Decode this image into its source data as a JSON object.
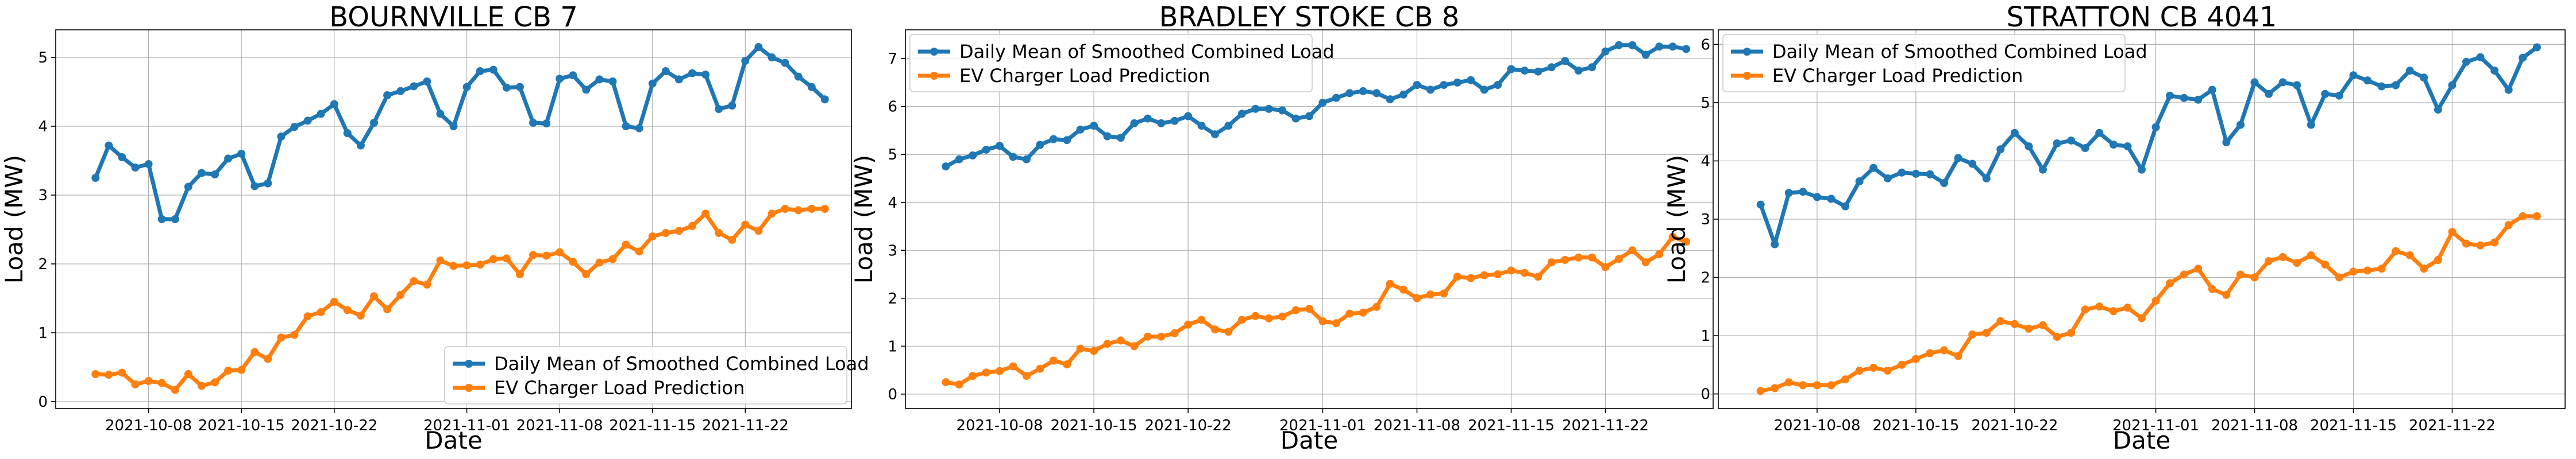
{
  "chart_data": [
    {
      "type": "line",
      "title": "BOURNVILLE CB 7",
      "xlabel": "Date",
      "ylabel": "Load (MW)",
      "x_start": "2021-10-04",
      "xlim": [
        "2021-10-01",
        "2021-11-30"
      ],
      "x_ticks": [
        "2021-10-08",
        "2021-10-15",
        "2021-10-22",
        "2021-11-01",
        "2021-11-08",
        "2021-11-15",
        "2021-11-22"
      ],
      "ylim": [
        -0.1,
        5.4
      ],
      "y_ticks": [
        0,
        1,
        2,
        3,
        4,
        5
      ],
      "grid": true,
      "legend_position": "lower-right",
      "colors": {
        "combined": "#1f77b4",
        "ev": "#ff7f0e"
      },
      "series": [
        {
          "name": "Daily Mean of Smoothed Combined Load",
          "values": [
            3.25,
            3.72,
            3.55,
            3.4,
            3.45,
            2.65,
            2.65,
            3.12,
            3.32,
            3.3,
            3.53,
            3.6,
            3.13,
            3.17,
            3.85,
            3.99,
            4.08,
            4.18,
            4.32,
            3.9,
            3.72,
            4.05,
            4.45,
            4.51,
            4.58,
            4.65,
            4.18,
            4.0,
            4.57,
            4.8,
            4.82,
            4.56,
            4.57,
            4.05,
            4.04,
            4.69,
            4.74,
            4.53,
            4.68,
            4.65,
            4.0,
            3.97,
            4.62,
            4.8,
            4.68,
            4.77,
            4.75,
            4.25,
            4.3,
            4.95,
            5.15,
            5.0,
            4.92,
            4.72,
            4.57,
            4.39
          ]
        },
        {
          "name": "EV Charger Load Prediction",
          "values": [
            0.4,
            0.39,
            0.42,
            0.25,
            0.3,
            0.27,
            0.17,
            0.4,
            0.23,
            0.28,
            0.45,
            0.46,
            0.72,
            0.62,
            0.93,
            0.97,
            1.24,
            1.3,
            1.45,
            1.33,
            1.25,
            1.53,
            1.34,
            1.55,
            1.75,
            1.7,
            2.05,
            1.97,
            1.98,
            1.99,
            2.07,
            2.08,
            1.85,
            2.13,
            2.12,
            2.17,
            2.03,
            1.85,
            2.02,
            2.07,
            2.28,
            2.18,
            2.4,
            2.45,
            2.48,
            2.55,
            2.73,
            2.45,
            2.35,
            2.57,
            2.48,
            2.73,
            2.8,
            2.78,
            2.8,
            2.8
          ]
        }
      ]
    },
    {
      "type": "line",
      "title": "BRADLEY STOKE CB 8",
      "xlabel": "Date",
      "ylabel": "Load (MW)",
      "x_start": "2021-10-04",
      "xlim": [
        "2021-10-01",
        "2021-11-30"
      ],
      "x_ticks": [
        "2021-10-08",
        "2021-10-15",
        "2021-10-22",
        "2021-11-01",
        "2021-11-08",
        "2021-11-15",
        "2021-11-22"
      ],
      "ylim": [
        -0.3,
        7.6
      ],
      "y_ticks": [
        0,
        1,
        2,
        3,
        4,
        5,
        6,
        7
      ],
      "grid": true,
      "legend_position": "upper-left",
      "colors": {
        "combined": "#1f77b4",
        "ev": "#ff7f0e"
      },
      "series": [
        {
          "name": "Daily Mean of Smoothed Combined Load",
          "values": [
            4.75,
            4.9,
            4.98,
            5.1,
            5.18,
            4.95,
            4.9,
            5.2,
            5.32,
            5.3,
            5.52,
            5.6,
            5.38,
            5.35,
            5.65,
            5.75,
            5.65,
            5.7,
            5.8,
            5.6,
            5.42,
            5.6,
            5.85,
            5.95,
            5.95,
            5.92,
            5.75,
            5.8,
            6.08,
            6.18,
            6.28,
            6.32,
            6.28,
            6.15,
            6.25,
            6.45,
            6.35,
            6.45,
            6.5,
            6.55,
            6.35,
            6.45,
            6.78,
            6.75,
            6.73,
            6.82,
            6.95,
            6.75,
            6.82,
            7.15,
            7.28,
            7.28,
            7.08,
            7.25,
            7.25,
            7.2
          ]
        },
        {
          "name": "EV Charger Load Prediction",
          "values": [
            0.25,
            0.2,
            0.38,
            0.45,
            0.48,
            0.58,
            0.38,
            0.53,
            0.7,
            0.62,
            0.95,
            0.9,
            1.05,
            1.12,
            1.0,
            1.2,
            1.2,
            1.27,
            1.45,
            1.55,
            1.35,
            1.3,
            1.55,
            1.63,
            1.58,
            1.62,
            1.75,
            1.78,
            1.52,
            1.48,
            1.68,
            1.7,
            1.82,
            2.3,
            2.18,
            2.0,
            2.08,
            2.1,
            2.45,
            2.42,
            2.48,
            2.5,
            2.58,
            2.53,
            2.45,
            2.75,
            2.8,
            2.85,
            2.85,
            2.65,
            2.82,
            3.0,
            2.75,
            2.92,
            3.28,
            3.18
          ]
        }
      ]
    },
    {
      "type": "line",
      "title": "STRATTON CB 4041",
      "xlabel": "Date",
      "ylabel": "Load (MW)",
      "x_start": "2021-10-04",
      "xlim": [
        "2021-10-01",
        "2021-11-30"
      ],
      "x_ticks": [
        "2021-10-08",
        "2021-10-15",
        "2021-10-22",
        "2021-11-01",
        "2021-11-08",
        "2021-11-15",
        "2021-11-22"
      ],
      "ylim": [
        -0.25,
        6.25
      ],
      "y_ticks": [
        0,
        1,
        2,
        3,
        4,
        5,
        6
      ],
      "grid": true,
      "legend_position": "upper-left",
      "colors": {
        "combined": "#1f77b4",
        "ev": "#ff7f0e"
      },
      "series": [
        {
          "name": "Daily Mean of Smoothed Combined Load",
          "values": [
            3.25,
            2.57,
            3.45,
            3.47,
            3.38,
            3.35,
            3.22,
            3.65,
            3.88,
            3.7,
            3.8,
            3.78,
            3.77,
            3.62,
            4.05,
            3.95,
            3.7,
            4.2,
            4.48,
            4.25,
            3.85,
            4.3,
            4.35,
            4.22,
            4.48,
            4.28,
            4.25,
            3.85,
            4.58,
            5.12,
            5.08,
            5.05,
            5.22,
            4.32,
            4.62,
            5.35,
            5.15,
            5.35,
            5.3,
            4.62,
            5.15,
            5.12,
            5.47,
            5.38,
            5.28,
            5.3,
            5.55,
            5.43,
            4.88,
            5.3,
            5.7,
            5.78,
            5.55,
            5.22,
            5.77,
            5.95
          ]
        },
        {
          "name": "EV Charger Load Prediction",
          "values": [
            0.05,
            0.1,
            0.2,
            0.15,
            0.15,
            0.15,
            0.25,
            0.4,
            0.45,
            0.4,
            0.5,
            0.6,
            0.7,
            0.75,
            0.65,
            1.02,
            1.05,
            1.25,
            1.2,
            1.12,
            1.18,
            0.98,
            1.05,
            1.45,
            1.5,
            1.42,
            1.48,
            1.3,
            1.6,
            1.9,
            2.05,
            2.15,
            1.8,
            1.7,
            2.05,
            2.0,
            2.28,
            2.35,
            2.25,
            2.38,
            2.22,
            2.0,
            2.1,
            2.12,
            2.15,
            2.45,
            2.38,
            2.15,
            2.3,
            2.78,
            2.58,
            2.55,
            2.6,
            2.9,
            3.05,
            3.05
          ]
        }
      ]
    }
  ]
}
